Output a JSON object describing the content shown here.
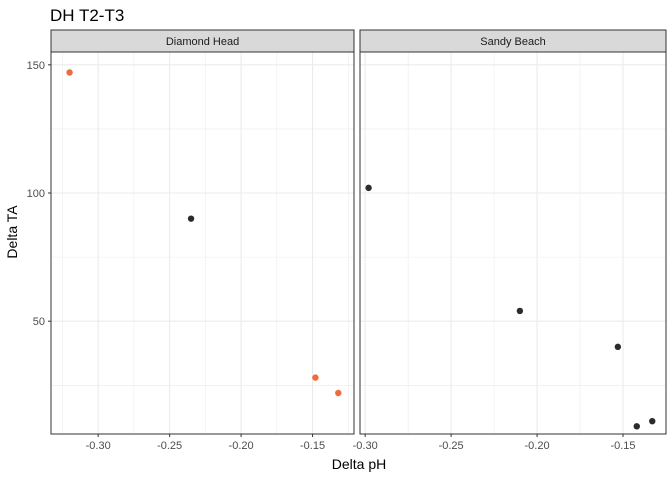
{
  "chart_data": {
    "type": "scatter",
    "title": "DH T2-T3",
    "xlabel": "Delta pH",
    "ylabel": "Delta TA",
    "xlim": [
      -0.333,
      0.0
    ],
    "ylim": [
      6,
      155
    ],
    "x_ticks": [
      -0.3,
      -0.25,
      -0.2,
      -0.15
    ],
    "x_tick_labels": [
      "-0.30",
      "-0.25",
      "-0.20",
      "-0.15"
    ],
    "y_ticks": [
      50,
      100,
      150
    ],
    "y_tick_labels": [
      "50",
      "100",
      "150"
    ],
    "grid": true,
    "legend": "none",
    "colors": {
      "highlight": "#f06b3c",
      "default": "#2b2b2b",
      "strip_fill": "#d9d9d9",
      "grid": "#ebebeb"
    },
    "panels": [
      {
        "name": "Diamond Head",
        "xlim": [
          -0.333,
          -0.121
        ],
        "points": [
          {
            "x": -0.32,
            "y": 147,
            "color": "#f06b3c"
          },
          {
            "x": -0.235,
            "y": 90,
            "color": "#2b2b2b"
          },
          {
            "x": -0.148,
            "y": 28,
            "color": "#f06b3c"
          },
          {
            "x": -0.132,
            "y": 22,
            "color": "#f06b3c"
          }
        ]
      },
      {
        "name": "Sandy Beach",
        "xlim": [
          -0.303,
          -0.125
        ],
        "points": [
          {
            "x": -0.298,
            "y": 102,
            "color": "#2b2b2b"
          },
          {
            "x": -0.21,
            "y": 54,
            "color": "#2b2b2b"
          },
          {
            "x": -0.153,
            "y": 40,
            "color": "#2b2b2b"
          },
          {
            "x": -0.142,
            "y": 9,
            "color": "#2b2b2b"
          },
          {
            "x": -0.133,
            "y": 11,
            "color": "#2b2b2b"
          }
        ]
      }
    ]
  }
}
